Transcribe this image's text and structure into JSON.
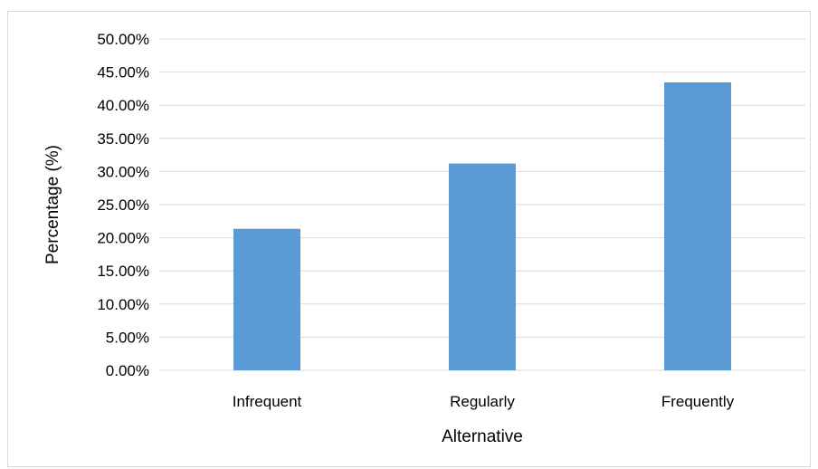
{
  "chart_data": {
    "type": "bar",
    "title": "",
    "xlabel": "Alternative",
    "ylabel": "Percentage (%)",
    "categories": [
      "Infrequent",
      "Regularly",
      "Frequently"
    ],
    "values": [
      0.2135,
      0.312,
      0.4345
    ],
    "ylim": [
      0,
      0.5
    ],
    "ytick_values": [
      0,
      0.05,
      0.1,
      0.15,
      0.2,
      0.25,
      0.3,
      0.35,
      0.4,
      0.45,
      0.5
    ],
    "ytick_labels": [
      "0.00%",
      "5.00%",
      "10.00%",
      "15.00%",
      "20.00%",
      "25.00%",
      "30.00%",
      "35.00%",
      "40.00%",
      "45.00%",
      "50.00%"
    ],
    "grid": true,
    "legend": "none",
    "bar_color": "#5b9bd5",
    "grid_color": "#d9d9d9"
  }
}
